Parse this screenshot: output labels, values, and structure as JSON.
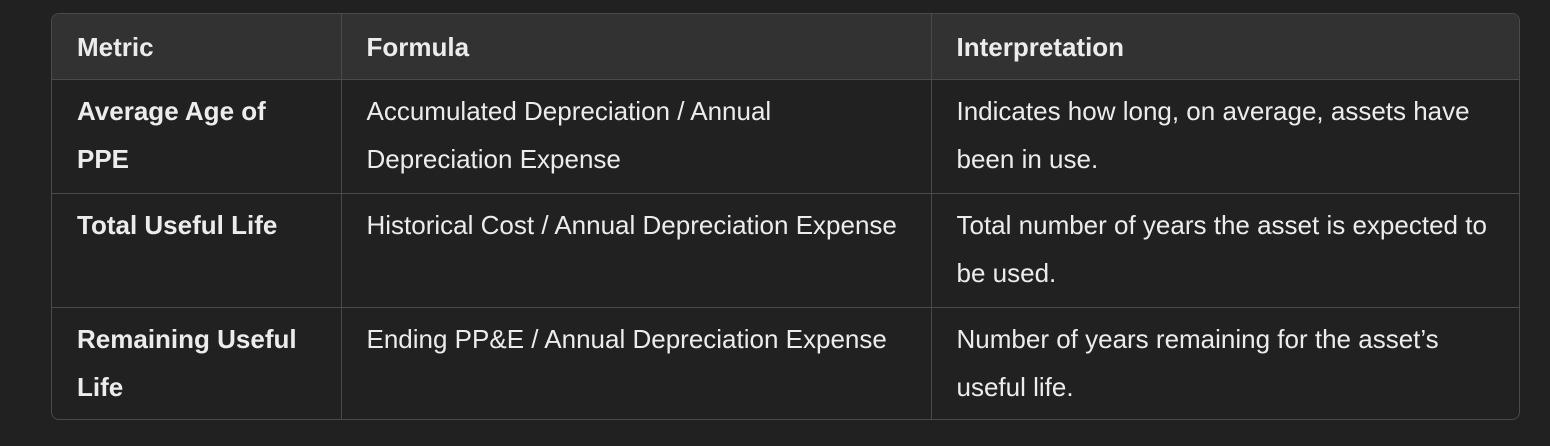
{
  "table": {
    "headers": [
      "Metric",
      "Formula",
      "Interpretation"
    ],
    "rows": [
      {
        "metric": "Average Age of PPE",
        "formula": "Accumulated Depreciation / Annual Depreciation Expense",
        "interpretation": "Indicates how long, on average, assets have been in use."
      },
      {
        "metric": "Total Useful Life",
        "formula": "Historical Cost / Annual Depreciation Expense",
        "interpretation": "Total number of years the asset is expected to be used."
      },
      {
        "metric": "Remaining Useful Life",
        "formula": "Ending PP&E / Annual Depreciation Expense",
        "interpretation": "Number of years remaining for the asset’s useful life."
      }
    ]
  }
}
